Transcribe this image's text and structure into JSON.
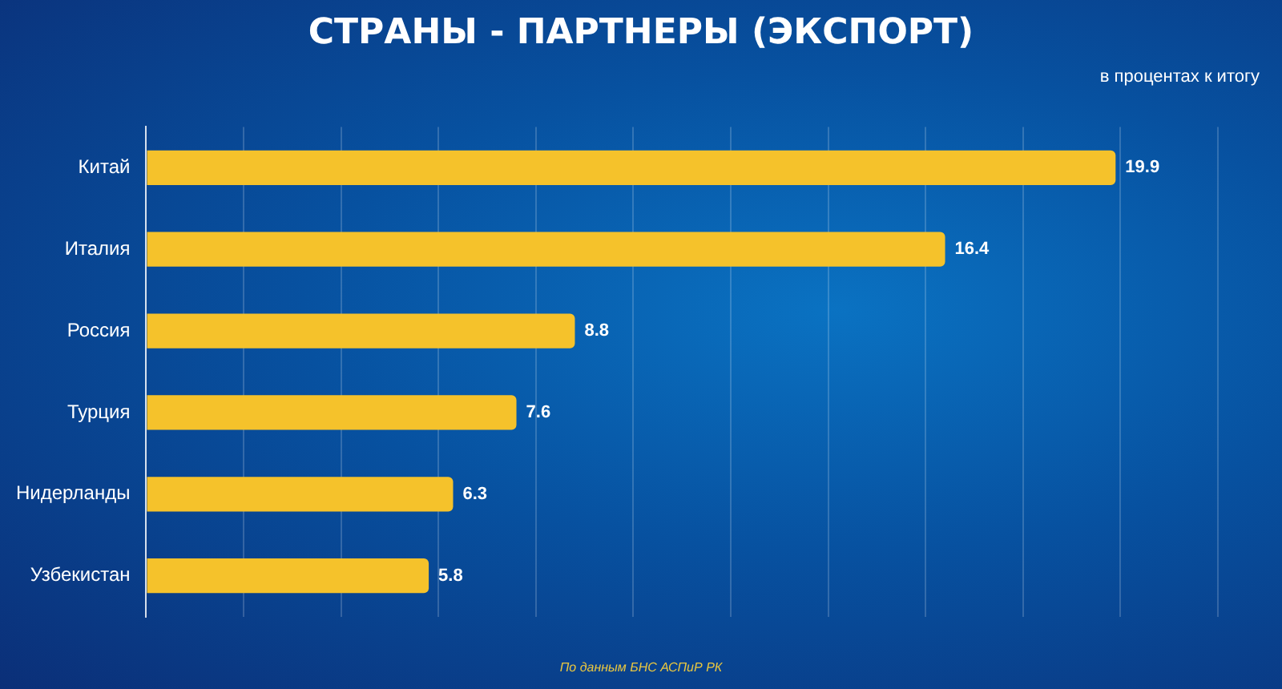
{
  "chart_data": {
    "type": "bar",
    "orientation": "horizontal",
    "title": "СТРАНЫ - ПАРТНЕРЫ (ЭКСПОРТ)",
    "subtitle": "в процентах к итогу",
    "categories": [
      "Китай",
      "Италия",
      "Россия",
      "Турция",
      "Нидерланды",
      "Узбекистан"
    ],
    "values": [
      19.9,
      16.4,
      8.8,
      7.6,
      6.3,
      5.8
    ],
    "color": "#f5c22b",
    "data_labels": true,
    "xlim": [
      0,
      22
    ],
    "xticks": [
      {
        "value": 0,
        "label": null
      },
      {
        "value": 2,
        "label": null
      },
      {
        "value": 4,
        "label": null
      },
      {
        "value": 6,
        "label": null
      },
      {
        "value": 8,
        "label": null
      },
      {
        "value": 10,
        "label": null
      },
      {
        "value": 12,
        "label": null
      },
      {
        "value": 14,
        "label": null
      },
      {
        "value": 16,
        "label": null
      },
      {
        "value": 18,
        "label": null
      },
      {
        "value": 20,
        "label": null
      },
      {
        "value": 22,
        "label": null
      }
    ],
    "grid": "x",
    "tick_labels": "y",
    "annotations": [
      "По данным БНС АСПиР РК"
    ]
  }
}
